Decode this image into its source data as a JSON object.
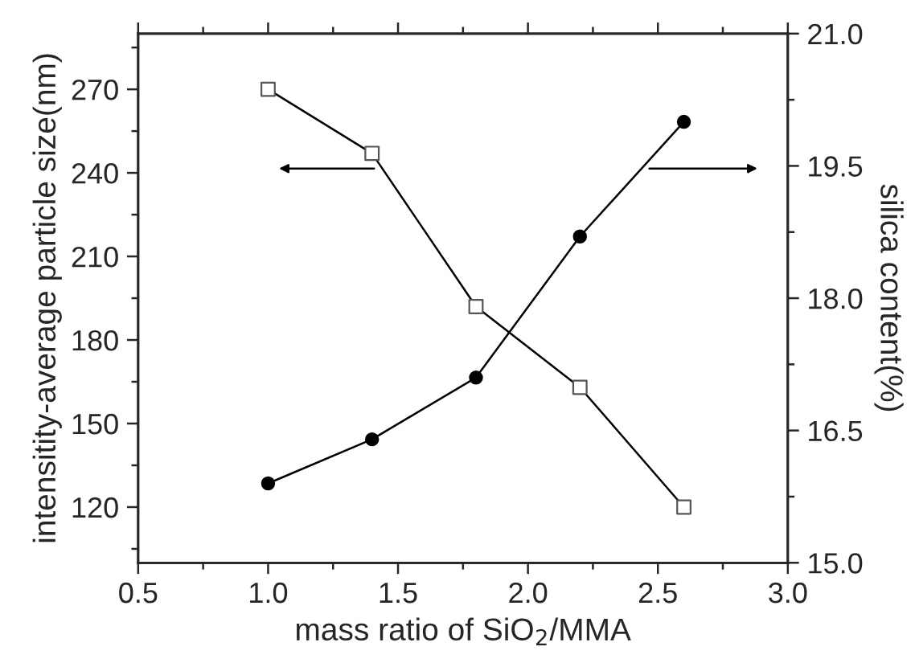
{
  "chart_data": {
    "type": "line",
    "xlabel": "mass ratio of SiO$_{2}$/MMA",
    "ylabel": "intensitity-average particle size(nm)",
    "y2label": "silica content(%)",
    "x": [
      1.0,
      1.4,
      1.8,
      2.2,
      2.6
    ],
    "series": [
      {
        "color": "#000000",
        "marker": "square",
        "values": [
          270,
          247,
          192,
          163,
          120
        ]
      },
      {
        "color": "#000000",
        "marker": "circle",
        "axis": "y2",
        "values": [
          15.9,
          16.4,
          17.1,
          18.7,
          20.0
        ]
      }
    ],
    "xlim": [
      0.5,
      3.0
    ],
    "xticks": [
      {
        "value": 0.5,
        "label": "0.5"
      },
      {
        "value": 1.0,
        "label": "1.0"
      },
      {
        "value": 1.5,
        "label": "1.5"
      },
      {
        "value": 2.0,
        "label": "2.0"
      },
      {
        "value": 2.5,
        "label": "2.5"
      },
      {
        "value": 3.0,
        "label": "3.0"
      }
    ],
    "ylim": [
      100,
      290
    ],
    "yticks": [
      120,
      150,
      180,
      210,
      240,
      270
    ],
    "y2lim": [
      15.0,
      21.0
    ],
    "y2ticks": [
      {
        "value": 15.0,
        "label": "15.0"
      },
      {
        "value": 16.5,
        "label": "16.5"
      },
      {
        "value": 18.0,
        "label": "18.0"
      },
      {
        "value": 19.5,
        "label": "19.5"
      },
      {
        "value": 21.0,
        "label": "21.0"
      }
    ],
    "grid": false,
    "line_style": "solid"
  }
}
